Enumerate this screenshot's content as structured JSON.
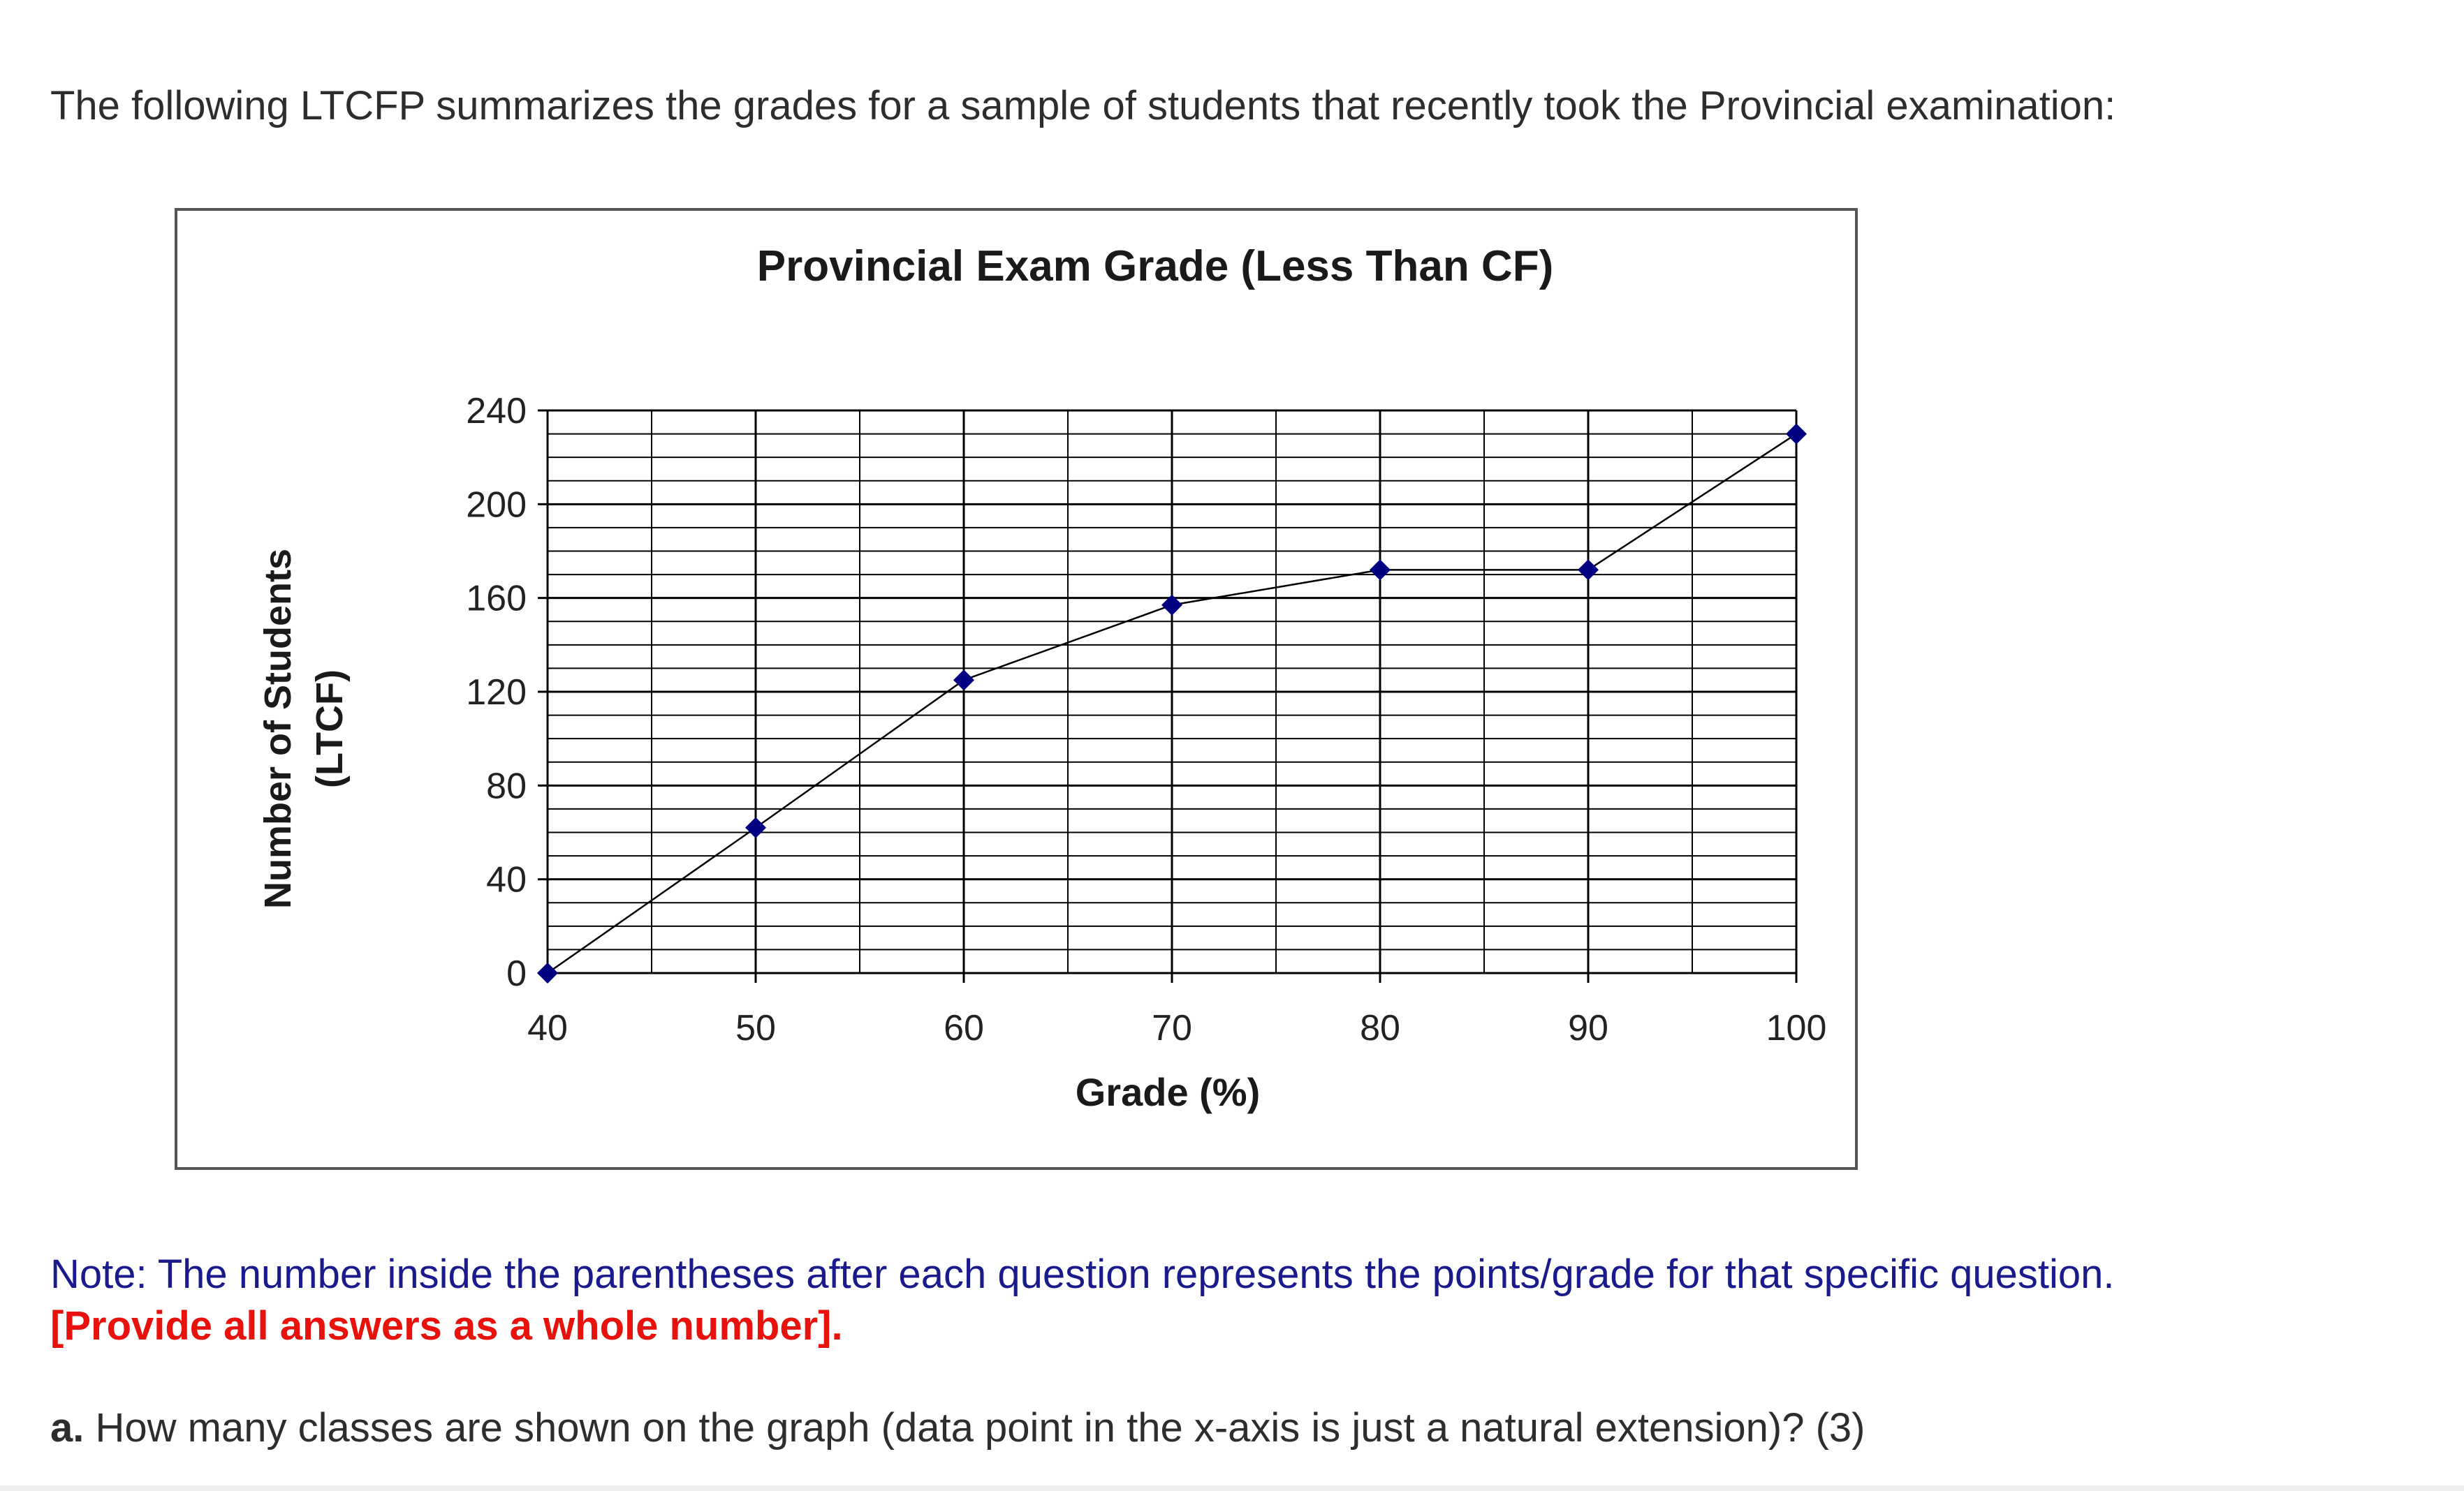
{
  "intro_text": "The following LTCFP summarizes the grades for a sample of students that recently took the Provincial examination:",
  "chart_data": {
    "type": "line",
    "title": "Provincial Exam Grade (Less Than CF)",
    "xlabel": "Grade (%)",
    "ylabel_line1": "Number of Students",
    "ylabel_line2": "(LTCF)",
    "x": [
      40,
      50,
      60,
      70,
      80,
      90,
      100
    ],
    "xticks": [
      "40",
      "50",
      "60",
      "70",
      "80",
      "90",
      "100"
    ],
    "yticks": [
      "0",
      "40",
      "80",
      "120",
      "160",
      "200",
      "240"
    ],
    "values": [
      0,
      62,
      125,
      157,
      172,
      172,
      230
    ],
    "xlim": [
      40,
      100
    ],
    "ylim": [
      0,
      240
    ],
    "grid": true,
    "marker": "diamond",
    "colors": {
      "line": "#000000",
      "marker": "#000080",
      "grid": "#000000"
    }
  },
  "note": {
    "text": "Note: The number inside the parentheses after each question represents the points/grade for that specific question.",
    "color": "#1a1a8c"
  },
  "warning": {
    "text": "[Provide all answers as a whole number].",
    "color": "#e8120c"
  },
  "question": {
    "label": "a.",
    "text": " How many classes are shown on the graph (data point in the x-axis is just a natural extension)? (3)"
  }
}
